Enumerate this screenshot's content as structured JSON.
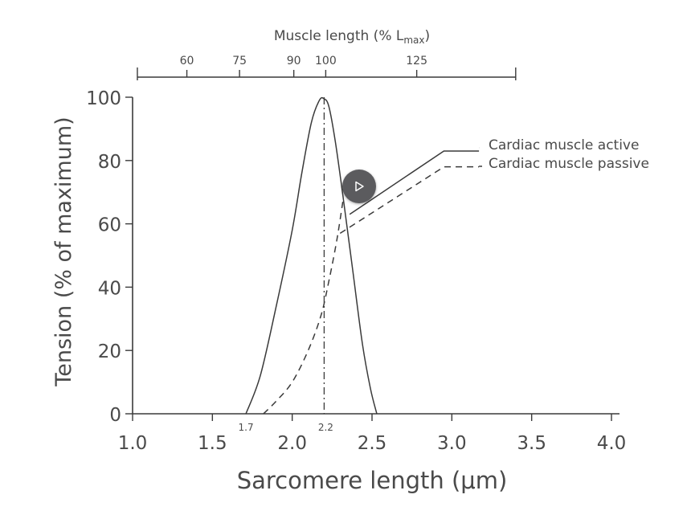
{
  "chart_data": {
    "type": "line",
    "xlabel": "Sarcomere length (μm)",
    "ylabel": "Tension (% of maximum)",
    "xlim": [
      1.0,
      4.0
    ],
    "ylim": [
      0,
      100
    ],
    "x_ticks": [
      "1.0",
      "1.5",
      "2.0",
      "2.5",
      "3.0",
      "3.5",
      "4.0"
    ],
    "y_ticks": [
      "0",
      "20",
      "40",
      "60",
      "80",
      "100"
    ],
    "extra_x_labels": [
      "1.7",
      "2.2"
    ],
    "top_axis": {
      "label_main": "Muscle length (% L",
      "label_sub": "max",
      "label_close": ")",
      "ticks": [
        {
          "label": "60",
          "x": 1.34
        },
        {
          "label": "75",
          "x": 1.67
        },
        {
          "label": "90",
          "x": 2.01
        },
        {
          "label": "100",
          "x": 2.21
        },
        {
          "label": "125",
          "x": 2.78
        }
      ],
      "range": [
        1.03,
        3.4
      ]
    },
    "reference_line_x": 2.2,
    "series": [
      {
        "name": "Cardiac muscle active",
        "style": "solid",
        "points": [
          [
            1.71,
            0
          ],
          [
            1.8,
            12
          ],
          [
            1.9,
            34
          ],
          [
            2.0,
            58
          ],
          [
            2.06,
            76
          ],
          [
            2.12,
            92
          ],
          [
            2.17,
            99
          ],
          [
            2.2,
            99.5
          ],
          [
            2.23,
            97
          ],
          [
            2.27,
            86
          ],
          [
            2.32,
            68
          ],
          [
            2.38,
            45
          ],
          [
            2.44,
            22
          ],
          [
            2.49,
            8
          ],
          [
            2.53,
            0
          ]
        ],
        "points2": [
          [
            2.36,
            63
          ],
          [
            2.95,
            83
          ],
          [
            3.17,
            83
          ]
        ]
      },
      {
        "name": "Cardiac muscle passive",
        "style": "dashed",
        "points": [
          [
            1.82,
            0
          ],
          [
            1.9,
            4
          ],
          [
            2.0,
            10
          ],
          [
            2.1,
            20
          ],
          [
            2.18,
            31
          ],
          [
            2.23,
            42
          ],
          [
            2.28,
            55
          ],
          [
            2.32,
            68
          ]
        ],
        "points2": [
          [
            2.3,
            57
          ],
          [
            2.95,
            78
          ],
          [
            3.17,
            78
          ]
        ]
      }
    ],
    "grid": false,
    "legend_placement": "right"
  }
}
